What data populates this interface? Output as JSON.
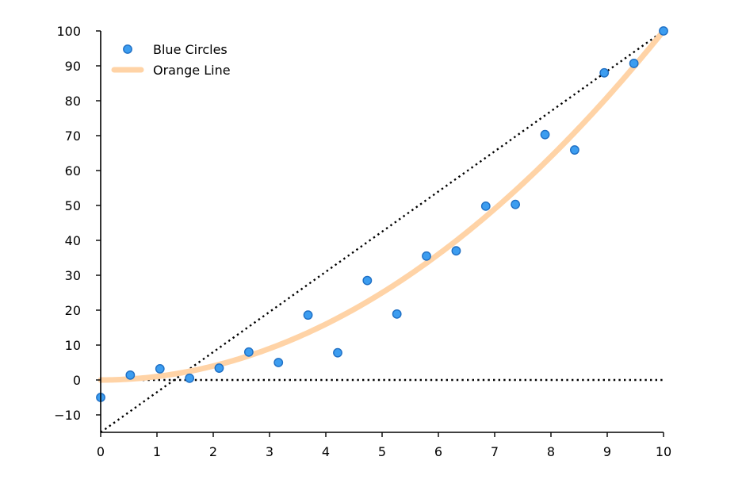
{
  "chart_data": {
    "type": "scatter",
    "xlim": [
      0,
      10
    ],
    "ylim": [
      -15,
      100
    ],
    "x_ticks": [
      0,
      1,
      2,
      3,
      4,
      5,
      6,
      7,
      8,
      9,
      10
    ],
    "y_ticks": [
      -10,
      0,
      10,
      20,
      30,
      40,
      50,
      60,
      70,
      80,
      90,
      100
    ],
    "x_tick_labels": [
      "0",
      "1",
      "2",
      "3",
      "4",
      "5",
      "6",
      "7",
      "8",
      "9",
      "10"
    ],
    "y_tick_labels": [
      "−10",
      "0",
      "10",
      "20",
      "30",
      "40",
      "50",
      "60",
      "70",
      "80",
      "90",
      "100"
    ],
    "grid": false,
    "legend_position": "top-left",
    "series": [
      {
        "name": "Blue Circles",
        "kind": "scatter",
        "color": "#3c9df0",
        "edge_color": "#1f6fc4",
        "x": [
          0,
          0.526,
          1.053,
          1.579,
          2.105,
          2.632,
          3.158,
          3.684,
          4.211,
          4.737,
          5.263,
          5.789,
          6.316,
          6.842,
          7.368,
          7.895,
          8.421,
          8.947,
          9.474,
          10
        ],
        "y": [
          -5,
          1.4,
          3.2,
          0.5,
          3.4,
          8.0,
          5.0,
          18.6,
          7.8,
          28.5,
          18.9,
          35.5,
          37.0,
          49.8,
          50.3,
          70.3,
          65.9,
          88.0,
          90.7,
          100
        ]
      },
      {
        "name": "Orange Line",
        "kind": "line",
        "color": "#ffd3a6",
        "function": "y = x^2"
      },
      {
        "kind": "line",
        "style": "dotted",
        "color": "#000000",
        "x": [
          0,
          10
        ],
        "y": [
          -15,
          100
        ]
      },
      {
        "kind": "line",
        "style": "dotted",
        "color": "#000000",
        "x": [
          0,
          10
        ],
        "y": [
          0,
          0
        ]
      }
    ]
  }
}
